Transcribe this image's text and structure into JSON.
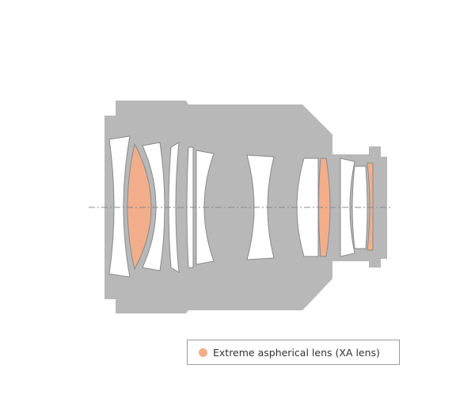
{
  "colors": {
    "barrel": "#b8b8b8",
    "lens": "#ffffff",
    "lens_outline": "#8a8a8a",
    "xa_lens": "#f2ae8a",
    "axis": "#888888"
  },
  "legend": {
    "label": "Extreme aspherical lens (XA lens)",
    "swatch_color": "#f2ae8a"
  }
}
